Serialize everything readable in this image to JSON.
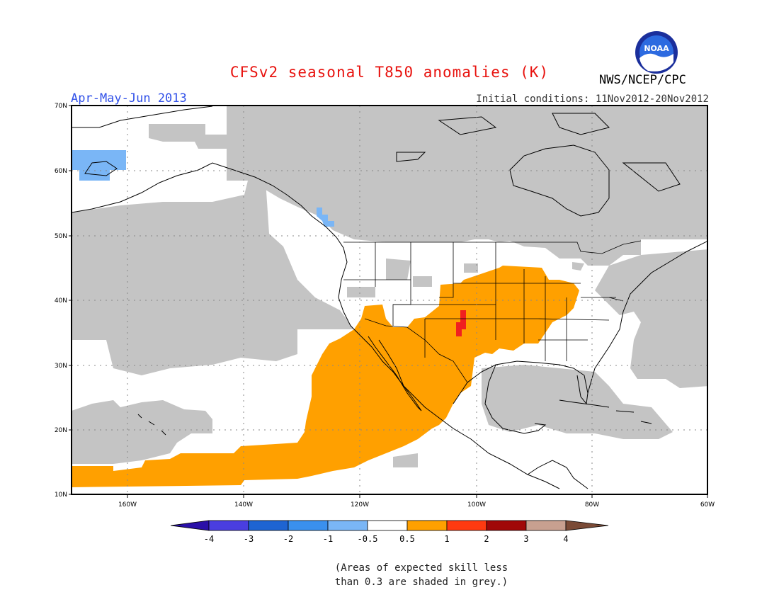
{
  "title": "CFSv2 seasonal T850 anomalies (K)",
  "season": "Apr-May-Jun 2013",
  "initial_conditions": "Initial conditions: 11Nov2012-20Nov2012",
  "agency": "NWS/NCEP/CPC",
  "logo_text": "NOAA",
  "map": {
    "projection": "lat-lon",
    "lon_range": [
      -173,
      -60
    ],
    "lat_range": [
      10,
      70
    ],
    "lat_ticks": [
      "70N",
      "60N",
      "50N",
      "40N",
      "30N",
      "20N",
      "10N"
    ],
    "lon_ticks": [
      "160W",
      "140W",
      "120W",
      "100W",
      "80W",
      "60W"
    ],
    "features": [
      "coastlines",
      "US state borders",
      "country borders",
      "grid lines"
    ]
  },
  "colorbar": {
    "tick_labels": [
      "-4",
      "-3",
      "-2",
      "-1",
      "-0.5",
      "0.5",
      "1",
      "2",
      "3",
      "4"
    ],
    "colors": {
      "below_-4": "#2a10a8",
      "-4_-3": "#4a3ee0",
      "-3_-2": "#1e64d2",
      "-2_-1": "#3a90ee",
      "-1_-0.5": "#7ab6f6",
      "-0.5_0.5": "#ffffff",
      "0.5_1": "#ffa000",
      "1_2": "#ff3a10",
      "2_3": "#a00808",
      "3_4": "#c8a090",
      "above_4": "#7a4a36"
    }
  },
  "colors": {
    "low_skill_grey": "#c4c4c4",
    "warm_anomaly": "#ffa000",
    "strong_warm": "#f02020",
    "cool_anomaly": "#7ab6f6"
  },
  "note_lines": [
    "(Areas of expected skill less",
    "than 0.3 are shaded in grey.)"
  ]
}
